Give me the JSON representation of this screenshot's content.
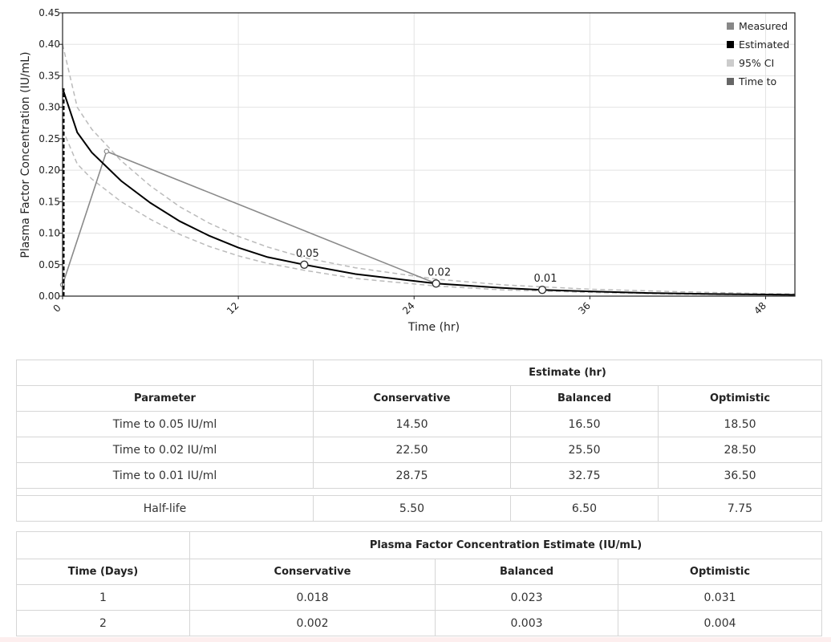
{
  "chart_data": {
    "type": "line",
    "xlabel": "Time (hr)",
    "ylabel": "Plasma Factor Concentration (IU/mL)",
    "xlim": [
      0,
      50
    ],
    "ylim": [
      0,
      0.45
    ],
    "x_ticks": [
      "0",
      "12",
      "24",
      "36",
      "48"
    ],
    "x_tick_values": [
      0,
      12,
      24,
      36,
      48
    ],
    "y_ticks": [
      "0.00",
      "0.05",
      "0.10",
      "0.15",
      "0.20",
      "0.25",
      "0.30",
      "0.35",
      "0.40",
      "0.45"
    ],
    "y_tick_values": [
      0,
      0.05,
      0.1,
      0.15,
      0.2,
      0.25,
      0.3,
      0.35,
      0.4,
      0.45
    ],
    "grid": true,
    "legend_position": "top-right",
    "legend": [
      {
        "label": "Measured",
        "color": "#888888"
      },
      {
        "label": "Estimated",
        "color": "#000000"
      },
      {
        "label": "95% CI",
        "color": "#cccccc"
      },
      {
        "label": "Time to",
        "color": "#666666"
      }
    ],
    "series": [
      {
        "name": "Measured",
        "color": "#8a8a8a",
        "x": [
          0,
          3,
          25.5
        ],
        "y": [
          0.018,
          0.23,
          0.02
        ]
      },
      {
        "name": "Estimated",
        "color": "#000000",
        "x": [
          0,
          1,
          2,
          4,
          6,
          8,
          10,
          12,
          14,
          16.5,
          20,
          25.5,
          30,
          32.75,
          36,
          40,
          44,
          48,
          50
        ],
        "y": [
          0.33,
          0.26,
          0.228,
          0.183,
          0.148,
          0.119,
          0.096,
          0.077,
          0.062,
          0.05,
          0.035,
          0.02,
          0.013,
          0.01,
          0.0075,
          0.005,
          0.0035,
          0.0025,
          0.002
        ]
      },
      {
        "name": "95% CI upper",
        "color": "#bbbbbb",
        "x": [
          0,
          1,
          2,
          4,
          6,
          8,
          10,
          12,
          14,
          16.5,
          20,
          25.5,
          30,
          36,
          42,
          48,
          50
        ],
        "y": [
          0.4,
          0.3,
          0.265,
          0.215,
          0.175,
          0.142,
          0.116,
          0.095,
          0.078,
          0.061,
          0.045,
          0.027,
          0.018,
          0.011,
          0.007,
          0.004,
          0.0035
        ]
      },
      {
        "name": "95% CI lower",
        "color": "#bbbbbb",
        "x": [
          0,
          1,
          2,
          4,
          6,
          8,
          10,
          12,
          14,
          16.5,
          20,
          25.5,
          30,
          36,
          42,
          48,
          50
        ],
        "y": [
          0.265,
          0.21,
          0.186,
          0.15,
          0.122,
          0.098,
          0.079,
          0.064,
          0.052,
          0.041,
          0.028,
          0.016,
          0.01,
          0.006,
          0.003,
          0.002,
          0.0015
        ]
      }
    ],
    "annotations": [
      {
        "x": 16.5,
        "y": 0.05,
        "label": "0.05"
      },
      {
        "x": 25.5,
        "y": 0.02,
        "label": "0.02"
      },
      {
        "x": 32.75,
        "y": 0.01,
        "label": "0.01"
      }
    ],
    "vertical_dashed_line": {
      "x": 0,
      "from": 0,
      "to": 0.33,
      "color": "#000000"
    }
  },
  "table1": {
    "group_header": "Estimate (hr)",
    "columns": [
      "Parameter",
      "Conservative",
      "Balanced",
      "Optimistic"
    ],
    "rows": [
      [
        "Time to 0.05 IU/ml",
        "14.50",
        "16.50",
        "18.50"
      ],
      [
        "Time to 0.02 IU/ml",
        "22.50",
        "25.50",
        "28.50"
      ],
      [
        "Time to 0.01 IU/ml",
        "28.75",
        "32.75",
        "36.50"
      ]
    ],
    "half_life": [
      "Half-life",
      "5.50",
      "6.50",
      "7.75"
    ]
  },
  "table2": {
    "group_header": "Plasma Factor Concentration Estimate (IU/mL)",
    "columns": [
      "Time (Days)",
      "Conservative",
      "Balanced",
      "Optimistic"
    ],
    "rows": [
      [
        "1",
        "0.018",
        "0.023",
        "0.031"
      ],
      [
        "2",
        "0.002",
        "0.003",
        "0.004"
      ]
    ]
  }
}
